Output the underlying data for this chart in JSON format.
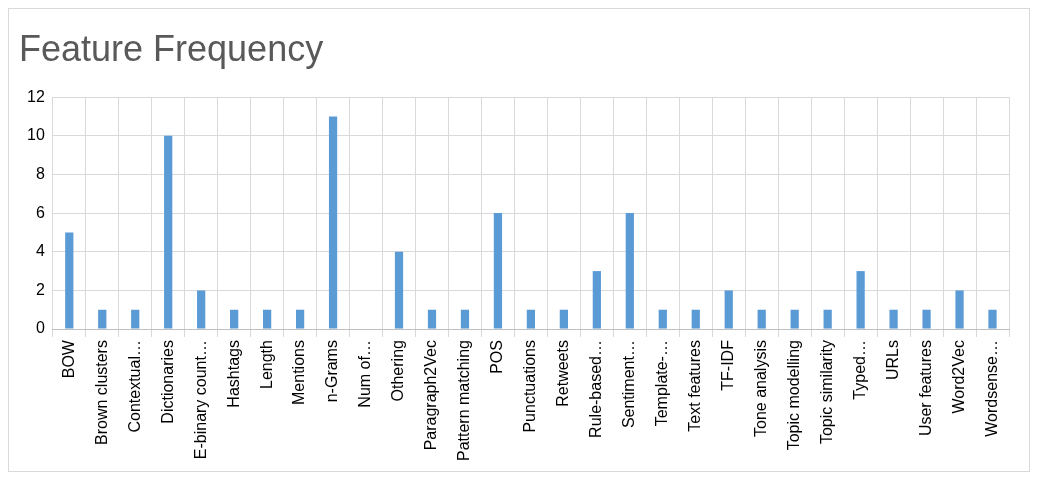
{
  "chart_data": {
    "type": "bar",
    "title": "Feature Frequency",
    "categories": [
      "BOW",
      "Brown clusters",
      "Contextual…",
      "Dictionaries",
      "E-binary count…",
      "Hashtags",
      "Length",
      "Mentions",
      "n-Grams",
      "Num of…",
      "Othering",
      "Paragraph2Vec",
      "Pattern matching",
      "POS",
      "Punctuations",
      "Retweets",
      "Rule-based…",
      "Sentiment…",
      "Template-…",
      "Text features",
      "TF-IDF",
      "Tone analysis",
      "Topic modelling",
      "Topic similarity",
      "Typed…",
      "URLs",
      "User features",
      "Word2Vec",
      "Wordsense…"
    ],
    "values": [
      5,
      1,
      1,
      10,
      2,
      1,
      1,
      1,
      11,
      0,
      4,
      1,
      1,
      6,
      1,
      1,
      3,
      6,
      1,
      1,
      2,
      1,
      1,
      1,
      3,
      1,
      1,
      2,
      1
    ],
    "color": "#5b9bd5",
    "ylim": [
      0,
      12
    ],
    "yticks": [
      0,
      2,
      4,
      6,
      8,
      10,
      12
    ],
    "grid": true,
    "legend": false
  }
}
